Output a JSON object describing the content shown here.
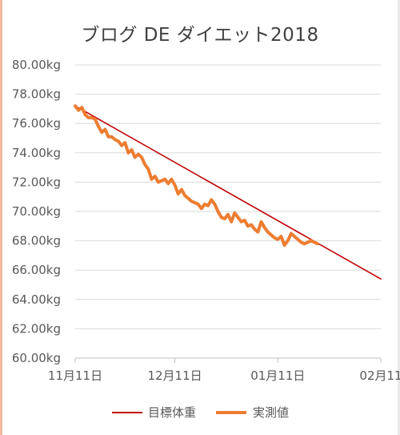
{
  "chart_data": {
    "type": "line",
    "title": "ブログ DE ダイエット2018",
    "xlabel": "",
    "ylabel": "",
    "ylim": [
      60,
      80
    ],
    "yticks": [
      "60.00kg",
      "62.00kg",
      "64.00kg",
      "66.00kg",
      "68.00kg",
      "70.00kg",
      "72.00kg",
      "74.00kg",
      "76.00kg",
      "78.00kg",
      "80.00kg"
    ],
    "xlim": [
      0,
      92
    ],
    "xticks": [
      {
        "day": 0,
        "label": "11月11日"
      },
      {
        "day": 30,
        "label": "12月11日"
      },
      {
        "day": 61,
        "label": "01月11日"
      },
      {
        "day": 92,
        "label": "02月11"
      }
    ],
    "grid": true,
    "legend": "bottom",
    "series": [
      {
        "name": "目標体重",
        "color": "#c00000",
        "x": [
          0,
          92
        ],
        "y": [
          77.2,
          65.4
        ]
      },
      {
        "name": "実測値",
        "color": "#ed7d31",
        "x": [
          0,
          1,
          2,
          3,
          4,
          5,
          6,
          7,
          8,
          9,
          10,
          11,
          12,
          13,
          14,
          15,
          16,
          17,
          18,
          19,
          20,
          21,
          22,
          23,
          24,
          25,
          26,
          27,
          28,
          29,
          30,
          31,
          32,
          33,
          34,
          35,
          36,
          37,
          38,
          39,
          40,
          41,
          42,
          43,
          44,
          45,
          46,
          47,
          48,
          49,
          50,
          51,
          52,
          53,
          54,
          55,
          56,
          57,
          58,
          59,
          60,
          61,
          62,
          63,
          64,
          65,
          66,
          67,
          68,
          69,
          70,
          71,
          72,
          73
        ],
        "y": [
          77.2,
          76.9,
          77.1,
          76.6,
          76.4,
          76.4,
          76.3,
          75.8,
          75.4,
          75.6,
          75.1,
          75.1,
          74.9,
          74.8,
          74.5,
          74.7,
          74.0,
          74.2,
          73.7,
          73.9,
          73.7,
          73.2,
          72.9,
          72.2,
          72.4,
          72.0,
          72.1,
          72.2,
          71.9,
          72.2,
          71.8,
          71.2,
          71.5,
          71.1,
          70.9,
          70.7,
          70.6,
          70.5,
          70.2,
          70.5,
          70.4,
          70.8,
          70.5,
          70.0,
          69.6,
          69.5,
          69.8,
          69.3,
          69.9,
          69.6,
          69.3,
          69.4,
          69.0,
          69.1,
          68.8,
          68.6,
          69.3,
          68.9,
          68.6,
          68.4,
          68.2,
          68.1,
          68.3,
          67.7,
          68.0,
          68.5,
          68.3,
          68.1,
          67.9,
          67.8,
          67.9,
          68.0,
          67.9,
          67.8
        ]
      }
    ]
  }
}
